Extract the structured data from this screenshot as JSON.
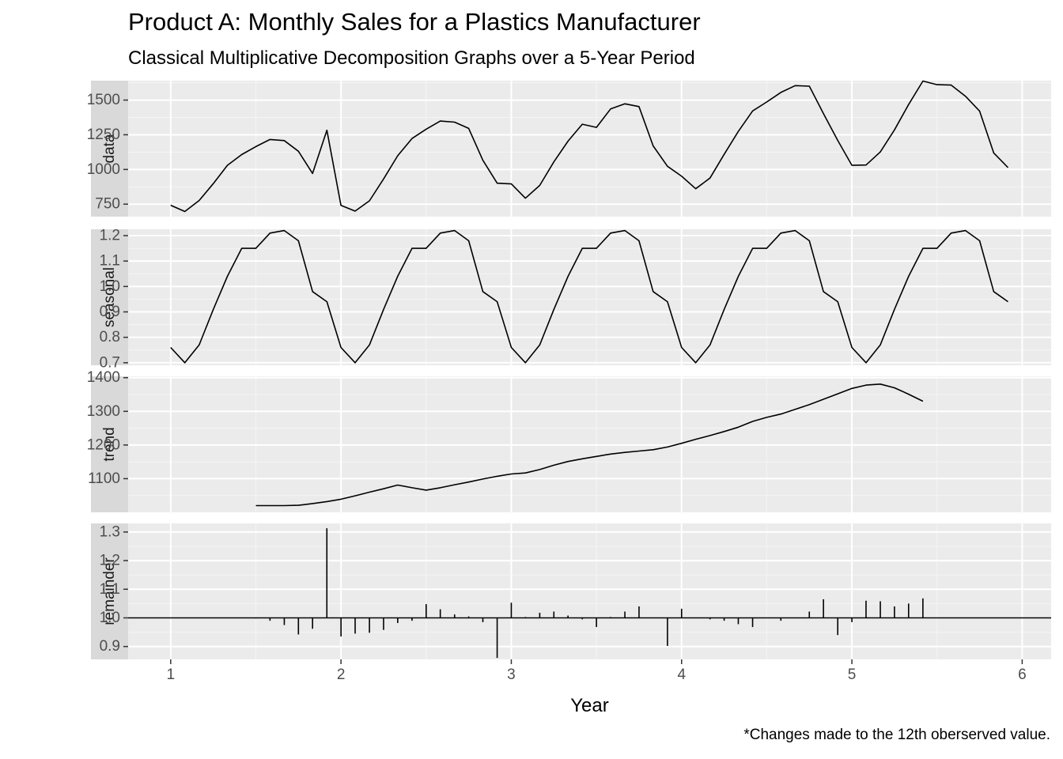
{
  "title": "Product A: Monthly Sales for a Plastics Manufacturer",
  "subtitle": "Classical Multiplicative Decomposition Graphs over a 5-Year Period",
  "caption": "*Changes made to the 12th oberserved value.",
  "chart_data": {
    "type": "line",
    "xlabel": "Year",
    "xlim": [
      0.75,
      6.17
    ],
    "x_ticks": [
      1,
      2,
      3,
      4,
      5,
      6
    ],
    "grid": true,
    "panels": [
      {
        "name": "data",
        "type": "line",
        "ylim": [
          660,
          1640
        ],
        "y_ticks": [
          750,
          1000,
          1250,
          1500
        ],
        "x": [
          1.0,
          1.083,
          1.167,
          1.25,
          1.333,
          1.417,
          1.5,
          1.583,
          1.667,
          1.75,
          1.833,
          1.917,
          2.0,
          2.083,
          2.167,
          2.25,
          2.333,
          2.417,
          2.5,
          2.583,
          2.667,
          2.75,
          2.833,
          2.917,
          3.0,
          3.083,
          3.167,
          3.25,
          3.333,
          3.417,
          3.5,
          3.583,
          3.667,
          3.75,
          3.833,
          3.917,
          4.0,
          4.083,
          4.167,
          4.25,
          4.333,
          4.417,
          4.5,
          4.583,
          4.667,
          4.75,
          4.833,
          4.917,
          5.0,
          5.083,
          5.167,
          5.25,
          5.333,
          5.417,
          5.5,
          5.583,
          5.667,
          5.75,
          5.833,
          5.917
        ],
        "values": [
          742,
          697,
          776,
          898,
          1030,
          1107,
          1165,
          1216,
          1208,
          1131,
          971,
          1283,
          741,
          700,
          774,
          932,
          1099,
          1223,
          1290,
          1349,
          1341,
          1296,
          1066,
          901,
          896,
          793,
          885,
          1055,
          1204,
          1326,
          1303,
          1436,
          1473,
          1453,
          1170,
          1023,
          951,
          861,
          938,
          1109,
          1274,
          1422,
          1486,
          1555,
          1604,
          1600,
          1403,
          1209,
          1030,
          1032,
          1126,
          1285,
          1468,
          1637,
          1611,
          1608,
          1528,
          1420,
          1119,
          1013
        ]
      },
      {
        "name": "seasonal",
        "type": "line",
        "ylim": [
          0.69,
          1.225
        ],
        "y_ticks": [
          0.7,
          0.8,
          0.9,
          1.0,
          1.1,
          1.2
        ],
        "y_tick_labels": [
          "0.7",
          "0.8",
          "0.9",
          "1.0",
          "1.1",
          "1.2"
        ],
        "x": [
          1.0,
          1.083,
          1.167,
          1.25,
          1.333,
          1.417,
          1.5,
          1.583,
          1.667,
          1.75,
          1.833,
          1.917,
          2.0,
          2.083,
          2.167,
          2.25,
          2.333,
          2.417,
          2.5,
          2.583,
          2.667,
          2.75,
          2.833,
          2.917,
          3.0,
          3.083,
          3.167,
          3.25,
          3.333,
          3.417,
          3.5,
          3.583,
          3.667,
          3.75,
          3.833,
          3.917,
          4.0,
          4.083,
          4.167,
          4.25,
          4.333,
          4.417,
          4.5,
          4.583,
          4.667,
          4.75,
          4.833,
          4.917,
          5.0,
          5.083,
          5.167,
          5.25,
          5.333,
          5.417,
          5.5,
          5.583,
          5.667,
          5.75,
          5.833,
          5.917
        ],
        "values": [
          0.76,
          0.7,
          0.77,
          0.91,
          1.04,
          1.15,
          1.15,
          1.21,
          1.22,
          1.18,
          0.98,
          0.94,
          0.76,
          0.7,
          0.77,
          0.91,
          1.04,
          1.15,
          1.15,
          1.21,
          1.22,
          1.18,
          0.98,
          0.94,
          0.76,
          0.7,
          0.77,
          0.91,
          1.04,
          1.15,
          1.15,
          1.21,
          1.22,
          1.18,
          0.98,
          0.94,
          0.76,
          0.7,
          0.77,
          0.91,
          1.04,
          1.15,
          1.15,
          1.21,
          1.22,
          1.18,
          0.98,
          0.94,
          0.76,
          0.7,
          0.77,
          0.91,
          1.04,
          1.15,
          1.15,
          1.21,
          1.22,
          1.18,
          0.98,
          0.94
        ]
      },
      {
        "name": "trend",
        "type": "line",
        "ylim": [
          1000,
          1404
        ],
        "y_ticks": [
          1100,
          1200,
          1300,
          1400
        ],
        "x": [
          1.5,
          1.583,
          1.667,
          1.75,
          1.833,
          1.917,
          2.0,
          2.083,
          2.167,
          2.25,
          2.333,
          2.417,
          2.5,
          2.583,
          2.667,
          2.75,
          2.833,
          2.917,
          3.0,
          3.083,
          3.167,
          3.25,
          3.333,
          3.417,
          3.5,
          3.583,
          3.667,
          3.75,
          3.833,
          3.917,
          4.0,
          4.083,
          4.167,
          4.25,
          4.333,
          4.417,
          4.5,
          4.583,
          4.667,
          4.75,
          4.833,
          4.917,
          5.0,
          5.083,
          5.167,
          5.25,
          5.333,
          5.417
        ],
        "values": [
          1020,
          1020,
          1020,
          1021,
          1026,
          1032,
          1039,
          1049,
          1060,
          1070,
          1081,
          1073,
          1066,
          1073,
          1082,
          1090,
          1099,
          1107,
          1114,
          1117,
          1127,
          1140,
          1151,
          1159,
          1166,
          1173,
          1178,
          1182,
          1186,
          1194,
          1205,
          1217,
          1228,
          1240,
          1253,
          1270,
          1282,
          1292,
          1306,
          1320,
          1336,
          1352,
          1368,
          1378,
          1381,
          1370,
          1351,
          1330
        ]
      },
      {
        "name": "remainder",
        "type": "bar",
        "baseline": 1.0,
        "ylim": [
          0.855,
          1.33
        ],
        "y_ticks": [
          0.9,
          1.0,
          1.1,
          1.2,
          1.3
        ],
        "y_tick_labels": [
          "0.9",
          "1.0",
          "1.1",
          "1.2",
          "1.3"
        ],
        "x": [
          1.5,
          1.583,
          1.667,
          1.75,
          1.833,
          1.917,
          2.0,
          2.083,
          2.167,
          2.25,
          2.333,
          2.417,
          2.5,
          2.583,
          2.667,
          2.75,
          2.833,
          2.917,
          3.0,
          3.083,
          3.167,
          3.25,
          3.333,
          3.417,
          3.5,
          3.583,
          3.667,
          3.75,
          3.833,
          3.917,
          4.0,
          4.083,
          4.167,
          4.25,
          4.333,
          4.417,
          4.5,
          4.583,
          4.667,
          4.75,
          4.833,
          4.917,
          5.0,
          5.083,
          5.167,
          5.25,
          5.333,
          5.417
        ],
        "values": [
          0.998,
          0.99,
          0.975,
          0.942,
          0.962,
          1.313,
          0.935,
          0.945,
          0.948,
          0.958,
          0.982,
          0.99,
          1.048,
          1.03,
          1.012,
          1.005,
          0.985,
          0.86,
          1.053,
          1.003,
          1.018,
          1.022,
          1.008,
          0.995,
          0.968,
          1.003,
          1.022,
          1.04,
          1.0,
          0.902,
          1.032,
          1.0,
          0.995,
          0.99,
          0.978,
          0.968,
          1.0,
          0.99,
          1.0,
          1.022,
          1.065,
          0.94,
          0.985,
          1.06,
          1.058,
          1.04,
          1.05,
          1.068
        ]
      }
    ]
  }
}
